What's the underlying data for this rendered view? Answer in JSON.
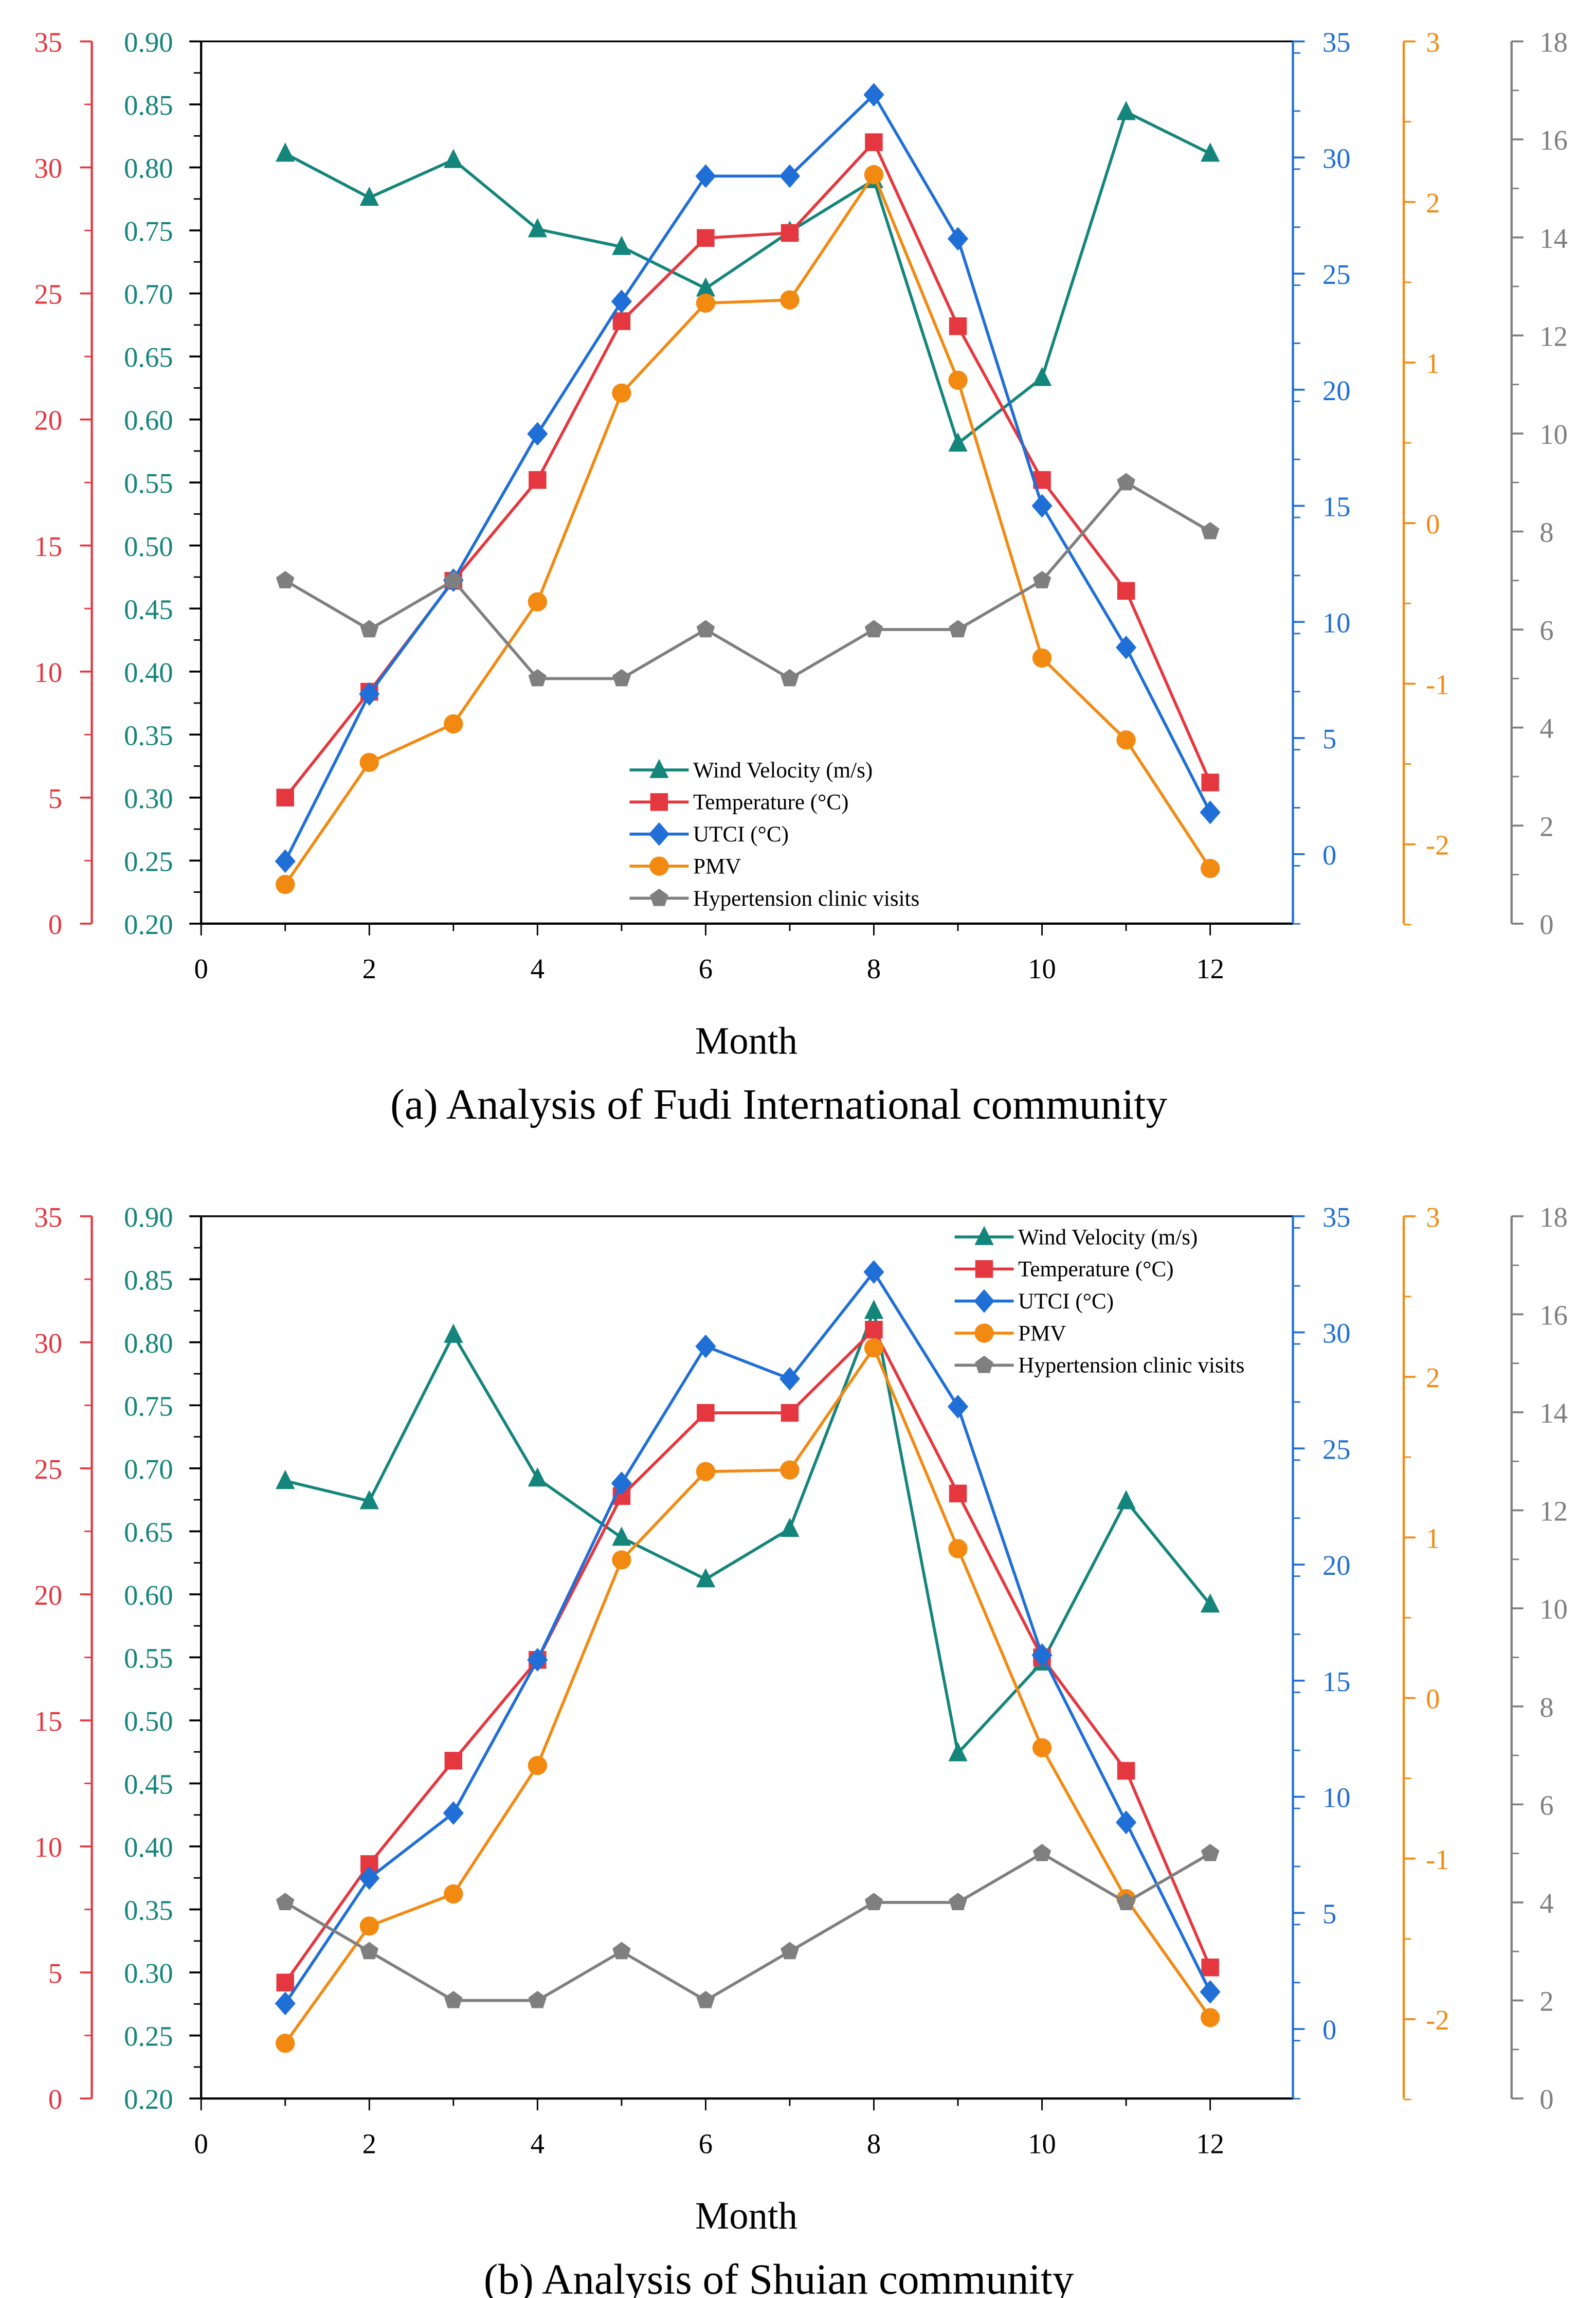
{
  "colors": {
    "wind": "#14857a",
    "temp": "#e5373f",
    "utci": "#1f6fd6",
    "pmv": "#f28a12",
    "hyp": "#7f7f7f"
  },
  "chart_data": [
    {
      "type": "line",
      "title": "(a) Analysis of Fudi International community",
      "xlabel": "Month",
      "xlim": [
        0,
        13
      ],
      "xticks": [
        "0",
        "2",
        "4",
        "6",
        "8",
        "10",
        "12"
      ],
      "x": [
        1,
        2,
        3,
        4,
        5,
        6,
        7,
        8,
        9,
        10,
        11,
        12
      ],
      "legend_position": "center-bottom",
      "axes": {
        "temp": {
          "ylim": [
            0,
            35
          ],
          "ticks": [
            "0",
            "5",
            "10",
            "15",
            "20",
            "25",
            "30",
            "35"
          ]
        },
        "wind": {
          "ylim": [
            0.2,
            0.9
          ],
          "ticks": [
            "0.20",
            "0.25",
            "0.30",
            "0.35",
            "0.40",
            "0.45",
            "0.50",
            "0.55",
            "0.60",
            "0.65",
            "0.70",
            "0.75",
            "0.80",
            "0.85",
            "0.90"
          ]
        },
        "utci": {
          "ylim": [
            -3,
            35
          ],
          "ticks": [
            "0",
            "5",
            "10",
            "15",
            "20",
            "25",
            "30",
            "35"
          ]
        },
        "pmv": {
          "ylim": [
            -2.5,
            3
          ],
          "ticks": [
            "-2",
            "-1",
            "0",
            "1",
            "2",
            "3"
          ]
        },
        "hyp": {
          "ylim": [
            0,
            18
          ],
          "ticks": [
            "0",
            "2",
            "4",
            "6",
            "8",
            "10",
            "12",
            "14",
            "16",
            "18"
          ]
        }
      },
      "series": [
        {
          "key": "wind",
          "name": "Wind Velocity (m/s)",
          "marker": "triangle",
          "values": [
            0.811,
            0.776,
            0.806,
            0.751,
            0.737,
            0.704,
            0.749,
            0.79,
            0.581,
            0.633,
            0.844,
            0.811
          ]
        },
        {
          "key": "temp",
          "name": "Temperature (°C)",
          "marker": "square",
          "values": [
            5.0,
            9.2,
            13.6,
            17.6,
            23.9,
            27.2,
            27.4,
            31.0,
            23.7,
            17.6,
            13.2,
            5.6
          ]
        },
        {
          "key": "utci",
          "name": "UTCI (°C)",
          "marker": "diamond",
          "values": [
            -0.3,
            6.9,
            11.8,
            18.1,
            23.8,
            29.2,
            29.2,
            32.7,
            26.5,
            15.0,
            8.9,
            1.8
          ]
        },
        {
          "key": "pmv",
          "name": "PMV",
          "marker": "circle",
          "values": [
            -2.25,
            -1.49,
            -1.25,
            -0.49,
            0.81,
            1.37,
            1.39,
            2.17,
            0.89,
            -0.84,
            -1.35,
            -2.15
          ]
        },
        {
          "key": "hyp",
          "name": "Hypertension clinic visits",
          "marker": "pentagon",
          "values": [
            7,
            6,
            7,
            5,
            5,
            6,
            5,
            6,
            6,
            7,
            9,
            8
          ]
        }
      ]
    },
    {
      "type": "line",
      "title": "(b) Analysis of Shuian community",
      "xlabel": "Month",
      "xlim": [
        0,
        13
      ],
      "xticks": [
        "0",
        "2",
        "4",
        "6",
        "8",
        "10",
        "12"
      ],
      "x": [
        1,
        2,
        3,
        4,
        5,
        6,
        7,
        8,
        9,
        10,
        11,
        12
      ],
      "legend_position": "top-right",
      "axes": {
        "temp": {
          "ylim": [
            0,
            35
          ],
          "ticks": [
            "0",
            "5",
            "10",
            "15",
            "20",
            "25",
            "30",
            "35"
          ]
        },
        "wind": {
          "ylim": [
            0.2,
            0.9
          ],
          "ticks": [
            "0.20",
            "0.25",
            "0.30",
            "0.35",
            "0.40",
            "0.45",
            "0.50",
            "0.55",
            "0.60",
            "0.65",
            "0.70",
            "0.75",
            "0.80",
            "0.85",
            "0.90"
          ]
        },
        "utci": {
          "ylim": [
            -3,
            35
          ],
          "ticks": [
            "0",
            "5",
            "10",
            "15",
            "20",
            "25",
            "30",
            "35"
          ]
        },
        "pmv": {
          "ylim": [
            -2.5,
            3
          ],
          "ticks": [
            "-2",
            "-1",
            "0",
            "1",
            "2",
            "3"
          ]
        },
        "hyp": {
          "ylim": [
            0,
            18
          ],
          "ticks": [
            "0",
            "2",
            "4",
            "6",
            "8",
            "10",
            "12",
            "14",
            "16",
            "18"
          ]
        }
      },
      "series": [
        {
          "key": "wind",
          "name": "Wind Velocity (m/s)",
          "marker": "triangle",
          "values": [
            0.69,
            0.674,
            0.806,
            0.692,
            0.645,
            0.612,
            0.652,
            0.825,
            0.474,
            0.546,
            0.674,
            0.592
          ]
        },
        {
          "key": "temp",
          "name": "Temperature (°C)",
          "marker": "square",
          "values": [
            4.6,
            9.3,
            13.4,
            17.4,
            23.9,
            27.2,
            27.2,
            30.5,
            24.0,
            17.5,
            13.0,
            5.2
          ]
        },
        {
          "key": "utci",
          "name": "UTCI (°C)",
          "marker": "diamond",
          "values": [
            1.1,
            6.5,
            9.3,
            15.9,
            23.5,
            29.4,
            28.0,
            32.6,
            26.8,
            16.1,
            8.9,
            1.6
          ]
        },
        {
          "key": "pmv",
          "name": "PMV",
          "marker": "circle",
          "values": [
            -2.15,
            -1.42,
            -1.22,
            -0.42,
            0.86,
            1.41,
            1.42,
            2.18,
            0.93,
            -0.31,
            -1.25,
            -1.99
          ]
        },
        {
          "key": "hyp",
          "name": "Hypertension clinic visits",
          "marker": "pentagon",
          "values": [
            4,
            3,
            2,
            2,
            3,
            2,
            3,
            4,
            4,
            5,
            4,
            5
          ]
        }
      ]
    }
  ]
}
